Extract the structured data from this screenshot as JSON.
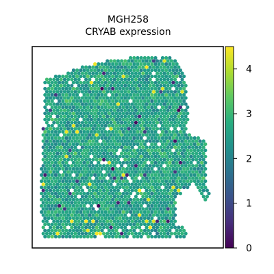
{
  "chart_data": {
    "type": "scatter",
    "title": "MGH258",
    "subtitle": "CRYAB expression",
    "xlabel": "",
    "ylabel": "",
    "grid": false,
    "colormap": "viridis",
    "colorbar": {
      "min": 0,
      "max": 4.5,
      "ticks": [
        0,
        1,
        2,
        3,
        4
      ],
      "tick_labels": [
        "0",
        "1",
        "2",
        "3",
        "4"
      ]
    },
    "value_distribution": {
      "typical_range": [
        1.8,
        3.6
      ],
      "center": 2.6
    },
    "colors": {
      "low": "#440154",
      "mid": "#21918c",
      "high": "#fde725"
    }
  }
}
